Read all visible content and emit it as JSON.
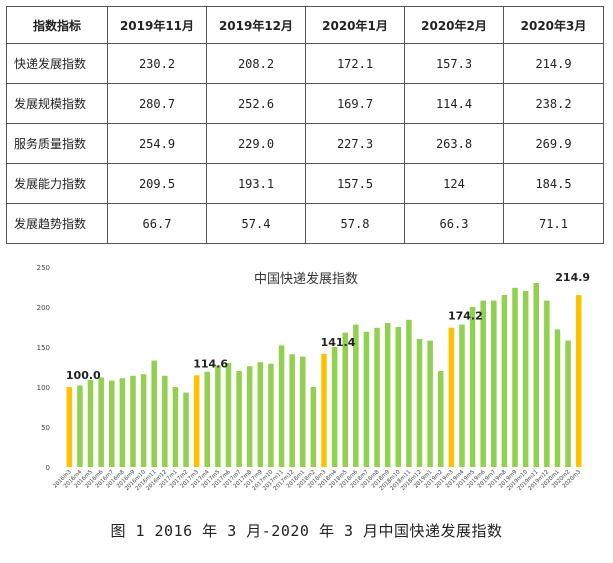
{
  "table": {
    "header": [
      "指数指标",
      "2019年11月",
      "2019年12月",
      "2020年1月",
      "2020年2月",
      "2020年3月"
    ],
    "rows": [
      {
        "label": "快递发展指数",
        "values": [
          "230.2",
          "208.2",
          "172.1",
          "157.3",
          "214.9"
        ]
      },
      {
        "label": "发展规模指数",
        "values": [
          "280.7",
          "252.6",
          "169.7",
          "114.4",
          "238.2"
        ]
      },
      {
        "label": "服务质量指数",
        "values": [
          "254.9",
          "229.0",
          "227.3",
          "263.8",
          "269.9"
        ]
      },
      {
        "label": "发展能力指数",
        "values": [
          "209.5",
          "193.1",
          "157.5",
          "124",
          "184.5"
        ]
      },
      {
        "label": "发展趋势指数",
        "values": [
          "66.7",
          "57.4",
          "57.8",
          "66.3",
          "71.1"
        ]
      }
    ]
  },
  "chart_data": {
    "type": "bar",
    "title": "中国快递发展指数",
    "ylim": [
      0,
      250
    ],
    "yticks": [
      0,
      50,
      100,
      150,
      200,
      250
    ],
    "grid": false,
    "colors": {
      "normal": "#92d050",
      "highlight": "#ffc000"
    },
    "categories": [
      "2016m3",
      "2016m4",
      "2016m5",
      "2016m6",
      "2016m7",
      "2016m8",
      "2016m9",
      "2016m10",
      "2016m11",
      "2016m12",
      "2017m1",
      "2017m2",
      "2017m3",
      "2017m4",
      "2017m5",
      "2017m6",
      "2017m7",
      "2017m8",
      "2017m9",
      "2017m10",
      "2017m11",
      "2017m12",
      "2018m1",
      "2018m2",
      "2018m3",
      "2018m4",
      "2018m5",
      "2018m6",
      "2018m7",
      "2018m8",
      "2018m9",
      "2018m10",
      "2018m11",
      "2018m12",
      "2019m1",
      "2019m2",
      "2019m3",
      "2019m4",
      "2019m5",
      "2019m6",
      "2019m7",
      "2019m8",
      "2019m9",
      "2019m10",
      "2019m11",
      "2019m12",
      "2020m1",
      "2020m2",
      "2020m3"
    ],
    "values": [
      100.0,
      102,
      109,
      112,
      108,
      111,
      114,
      116,
      133,
      114,
      100,
      93,
      114.6,
      119,
      127,
      130,
      120,
      126,
      131,
      129,
      152,
      141,
      138,
      100,
      141.4,
      150,
      168,
      178,
      169,
      174,
      180,
      175,
      184,
      160,
      158,
      120,
      174.2,
      178,
      200,
      208,
      208,
      215,
      224,
      220,
      230,
      208,
      172,
      158,
      214.9
    ],
    "highlight_indices": [
      0,
      12,
      24,
      36,
      48
    ],
    "labels": [
      "100.0",
      "114.6",
      "141.4",
      "174.2",
      "214.9"
    ]
  },
  "caption": "图 1 2016 年 3 月-2020 年 3 月中国快递发展指数"
}
